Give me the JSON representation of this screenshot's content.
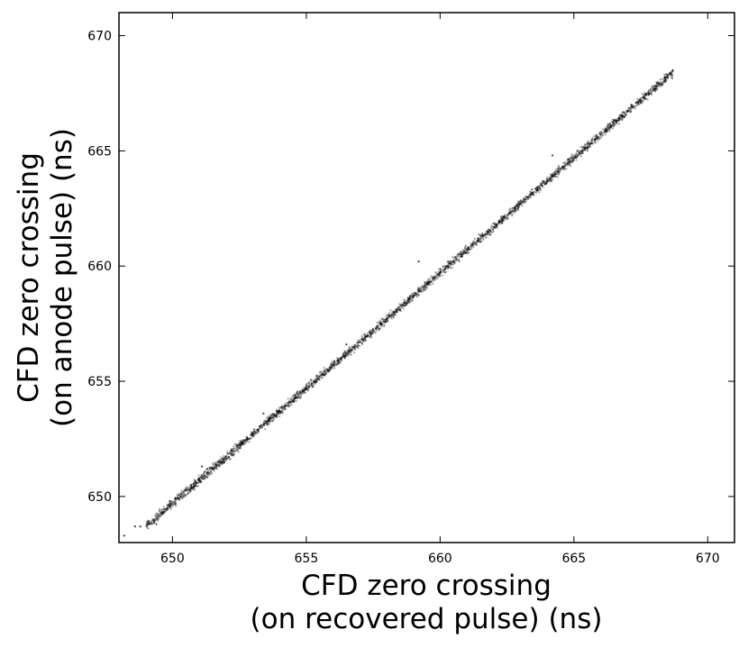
{
  "chart_data": {
    "type": "scatter",
    "title": "",
    "xlabel_lines": [
      "CFD zero crossing",
      "(on recovered pulse) (ns)"
    ],
    "ylabel_lines": [
      "CFD zero crossing",
      "(on anode pulse) (ns)"
    ],
    "xlim": [
      648,
      671
    ],
    "ylim": [
      648,
      671
    ],
    "xticks": [
      650,
      655,
      660,
      665,
      670
    ],
    "yticks": [
      650,
      655,
      660,
      665,
      670
    ],
    "grid": false,
    "legend": "none",
    "marker_color": "#000000",
    "trend": {
      "slope": 1.0,
      "intercept": -0.3
    },
    "series": [
      {
        "points": [
          [
            648.2,
            648.3
          ],
          [
            648.6,
            648.7
          ],
          [
            648.8,
            648.7
          ],
          [
            649.1,
            648.9
          ],
          [
            649.3,
            649.0
          ],
          [
            649.4,
            648.8
          ],
          [
            649.6,
            649.3
          ],
          [
            649.8,
            649.5
          ],
          [
            649.9,
            649.8
          ],
          [
            650.1,
            649.9
          ],
          [
            650.3,
            650.0
          ],
          [
            650.5,
            650.3
          ],
          [
            650.7,
            650.5
          ],
          [
            650.8,
            650.4
          ],
          [
            651.0,
            650.8
          ],
          [
            651.2,
            650.9
          ],
          [
            651.3,
            651.2
          ],
          [
            651.5,
            651.2
          ],
          [
            651.7,
            651.5
          ],
          [
            651.9,
            651.6
          ],
          [
            652.1,
            651.7
          ],
          [
            652.2,
            652.0
          ],
          [
            652.4,
            652.2
          ],
          [
            652.6,
            652.3
          ],
          [
            652.8,
            652.5
          ],
          [
            653.0,
            652.7
          ],
          [
            653.2,
            652.9
          ],
          [
            653.4,
            653.1
          ],
          [
            653.6,
            653.3
          ],
          [
            653.8,
            653.5
          ],
          [
            654.0,
            653.7
          ],
          [
            654.2,
            653.9
          ],
          [
            654.4,
            654.1
          ],
          [
            654.6,
            654.3
          ],
          [
            654.8,
            654.5
          ],
          [
            655.0,
            654.7
          ],
          [
            655.2,
            654.9
          ],
          [
            655.4,
            655.1
          ],
          [
            655.6,
            655.3
          ],
          [
            655.8,
            655.5
          ],
          [
            656.0,
            655.7
          ],
          [
            656.2,
            655.9
          ],
          [
            656.4,
            656.1
          ],
          [
            656.6,
            656.3
          ],
          [
            656.8,
            656.5
          ],
          [
            657.0,
            656.7
          ],
          [
            657.2,
            656.9
          ],
          [
            657.4,
            657.1
          ],
          [
            657.6,
            657.3
          ],
          [
            657.8,
            657.5
          ],
          [
            658.0,
            657.7
          ],
          [
            658.2,
            657.9
          ],
          [
            658.4,
            658.1
          ],
          [
            658.6,
            658.3
          ],
          [
            658.8,
            658.5
          ],
          [
            659.0,
            658.7
          ],
          [
            659.2,
            658.9
          ],
          [
            659.4,
            659.1
          ],
          [
            659.6,
            659.3
          ],
          [
            659.8,
            659.5
          ],
          [
            660.0,
            659.7
          ],
          [
            660.2,
            659.9
          ],
          [
            660.4,
            660.1
          ],
          [
            660.6,
            660.3
          ],
          [
            660.8,
            660.5
          ],
          [
            661.0,
            660.7
          ],
          [
            661.2,
            660.9
          ],
          [
            661.4,
            661.1
          ],
          [
            661.6,
            661.3
          ],
          [
            661.8,
            661.5
          ],
          [
            662.0,
            661.7
          ],
          [
            662.2,
            661.9
          ],
          [
            662.4,
            662.1
          ],
          [
            662.6,
            662.3
          ],
          [
            662.8,
            662.5
          ],
          [
            663.0,
            662.7
          ],
          [
            663.2,
            662.9
          ],
          [
            663.4,
            663.1
          ],
          [
            663.6,
            663.3
          ],
          [
            663.8,
            663.5
          ],
          [
            664.0,
            663.7
          ],
          [
            664.2,
            663.9
          ],
          [
            664.4,
            664.1
          ],
          [
            664.6,
            664.3
          ],
          [
            664.8,
            664.5
          ],
          [
            665.0,
            664.7
          ],
          [
            665.2,
            664.9
          ],
          [
            665.4,
            665.1
          ],
          [
            665.6,
            665.3
          ],
          [
            665.8,
            665.5
          ],
          [
            666.0,
            665.7
          ],
          [
            666.2,
            665.9
          ],
          [
            666.4,
            666.1
          ],
          [
            666.6,
            666.3
          ],
          [
            666.8,
            666.5
          ],
          [
            667.0,
            666.7
          ],
          [
            667.2,
            666.9
          ],
          [
            667.4,
            667.1
          ],
          [
            667.6,
            667.3
          ],
          [
            667.8,
            667.5
          ],
          [
            668.0,
            667.7
          ],
          [
            668.2,
            667.9
          ],
          [
            668.4,
            668.2
          ],
          [
            668.6,
            668.4
          ],
          [
            668.7,
            668.5
          ],
          [
            659.2,
            660.2
          ],
          [
            664.2,
            664.8
          ],
          [
            656.5,
            656.6
          ],
          [
            653.4,
            653.6
          ],
          [
            651.1,
            651.3
          ]
        ]
      }
    ]
  }
}
